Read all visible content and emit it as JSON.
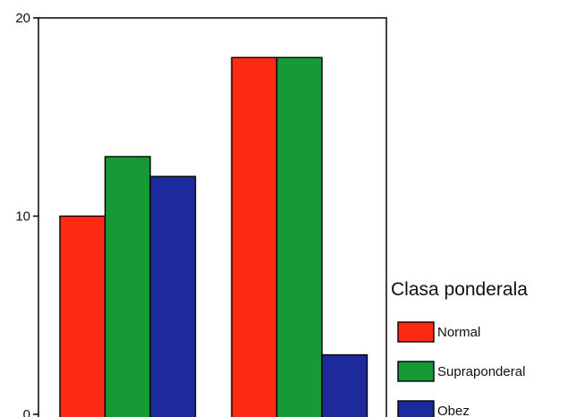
{
  "chart_data": {
    "type": "bar",
    "categories": [
      "",
      ""
    ],
    "series": [
      {
        "name": "Normal",
        "values": [
          10,
          18
        ],
        "color": "#ff2a12"
      },
      {
        "name": "Supraponderal",
        "values": [
          13,
          18
        ],
        "color": "#169a36"
      },
      {
        "name": "Obez",
        "values": [
          12,
          3
        ],
        "color": "#1c2a9c"
      }
    ],
    "title": "",
    "xlabel": "",
    "ylabel": "",
    "ylim": [
      0,
      20
    ],
    "yticks": [
      {
        "value": 0,
        "label": "0"
      },
      {
        "value": 10,
        "label": "10"
      },
      {
        "value": 20,
        "label": "20"
      }
    ],
    "grid": false,
    "legend": {
      "title": "Clasa ponderala",
      "position": "right"
    }
  }
}
